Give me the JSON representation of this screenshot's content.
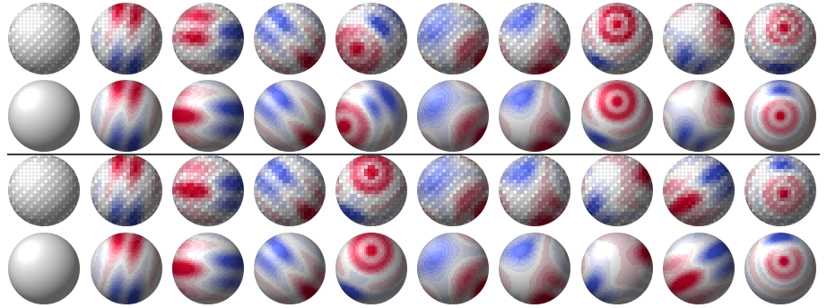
{
  "panels": [
    {
      "rows": [
        {
          "style": "voxel",
          "spheres": [
            {
              "pattern": "plain"
            },
            {
              "pattern": "bands",
              "angle": 15,
              "freq": 3.2,
              "phase": 0.2,
              "hot": [
                0.5,
                0.12,
                0.35
              ],
              "cold": [
                0.5,
                0.9,
                0.35
              ]
            },
            {
              "pattern": "bands",
              "angle": 95,
              "freq": 2.8,
              "phase": 1.0,
              "hot": [
                0.35,
                0.35,
                0.4
              ],
              "cold": [
                0.85,
                0.5,
                0.4
              ]
            },
            {
              "pattern": "bands",
              "angle": 135,
              "freq": 3.0,
              "phase": 0.5,
              "hot": [
                0.85,
                0.85,
                0.35
              ],
              "cold": [
                0.3,
                0.3,
                0.35
              ]
            },
            {
              "pattern": "rings",
              "freq": 3.0,
              "hot": [
                0.3,
                0.65,
                0.45
              ],
              "cold": [
                0.65,
                0.3,
                0.35
              ]
            },
            {
              "pattern": "saddle",
              "angle": 35,
              "freq": 3.0,
              "hot": [
                0.85,
                0.75,
                0.35
              ],
              "cold": [
                0.2,
                0.3,
                0.35
              ]
            },
            {
              "pattern": "saddle",
              "angle": -20,
              "freq": 3.0,
              "hot": [
                0.65,
                0.85,
                0.35
              ],
              "cold": [
                0.3,
                0.2,
                0.3
              ]
            },
            {
              "pattern": "rings",
              "freq": 4.0,
              "hot": [
                0.5,
                0.3,
                0.45
              ],
              "cold": [
                0.2,
                0.9,
                0.3
              ]
            },
            {
              "pattern": "saddle",
              "angle": 60,
              "freq": 3.0,
              "hot": [
                0.8,
                0.3,
                0.3
              ],
              "cold": [
                0.4,
                0.8,
                0.3
              ]
            },
            {
              "pattern": "rings",
              "freq": 4.0,
              "hot": [
                0.55,
                0.35,
                0.3
              ],
              "cold": [
                0.5,
                0.95,
                0.3
              ]
            }
          ]
        },
        {
          "style": "smooth",
          "spheres": [
            {
              "pattern": "plain"
            },
            {
              "pattern": "bands",
              "angle": 15,
              "freq": 3.2,
              "phase": 0.2,
              "hot": [
                0.5,
                0.12,
                0.35
              ],
              "cold": [
                0.5,
                0.9,
                0.35
              ]
            },
            {
              "pattern": "bands",
              "angle": 95,
              "freq": 2.8,
              "phase": 1.0,
              "hot": [
                0.12,
                0.5,
                0.4
              ],
              "cold": [
                0.85,
                0.5,
                0.4
              ]
            },
            {
              "pattern": "bands",
              "angle": 135,
              "freq": 3.0,
              "phase": 0.5,
              "hot": [
                0.85,
                0.85,
                0.35
              ],
              "cold": [
                0.3,
                0.3,
                0.35
              ]
            },
            {
              "pattern": "rings",
              "freq": 3.0,
              "hot": [
                0.12,
                0.65,
                0.45
              ],
              "cold": [
                0.65,
                0.3,
                0.35
              ]
            },
            {
              "pattern": "saddle",
              "angle": 35,
              "freq": 3.0,
              "hot": [
                0.85,
                0.75,
                0.35
              ],
              "cold": [
                0.2,
                0.3,
                0.35
              ]
            },
            {
              "pattern": "saddle",
              "angle": -20,
              "freq": 3.0,
              "hot": [
                0.65,
                0.85,
                0.35
              ],
              "cold": [
                0.3,
                0.2,
                0.3
              ]
            },
            {
              "pattern": "rings",
              "freq": 4.0,
              "hot": [
                0.5,
                0.3,
                0.45
              ],
              "cold": [
                0.2,
                0.9,
                0.3
              ]
            },
            {
              "pattern": "saddle",
              "angle": 60,
              "freq": 3.0,
              "hot": [
                0.8,
                0.3,
                0.3
              ],
              "cold": [
                0.4,
                0.8,
                0.3
              ]
            },
            {
              "pattern": "rings",
              "freq": 4.0,
              "hot": [
                0.5,
                0.5,
                0.3
              ],
              "cold": [
                0.5,
                0.05,
                0.3
              ]
            }
          ]
        }
      ]
    },
    {
      "rows": [
        {
          "style": "voxel",
          "spheres": [
            {
              "pattern": "plain"
            },
            {
              "pattern": "bands",
              "angle": 15,
              "freq": 3.2,
              "phase": 0.2,
              "hot": [
                0.5,
                0.12,
                0.35
              ],
              "cold": [
                0.5,
                0.9,
                0.35
              ]
            },
            {
              "pattern": "bands",
              "angle": 95,
              "freq": 2.8,
              "phase": 1.0,
              "hot": [
                0.3,
                0.45,
                0.4
              ],
              "cold": [
                0.85,
                0.5,
                0.4
              ]
            },
            {
              "pattern": "bands",
              "angle": 135,
              "freq": 3.0,
              "phase": 0.5,
              "hot": [
                0.85,
                0.85,
                0.35
              ],
              "cold": [
                0.3,
                0.3,
                0.35
              ]
            },
            {
              "pattern": "rings",
              "freq": 3.5,
              "hot": [
                0.5,
                0.25,
                0.45
              ],
              "cold": [
                0.2,
                0.85,
                0.3
              ]
            },
            {
              "pattern": "saddle",
              "angle": 35,
              "freq": 3.0,
              "hot": [
                0.85,
                0.75,
                0.35
              ],
              "cold": [
                0.2,
                0.3,
                0.35
              ]
            },
            {
              "pattern": "saddle",
              "angle": -20,
              "freq": 3.0,
              "hot": [
                0.65,
                0.85,
                0.35
              ],
              "cold": [
                0.3,
                0.2,
                0.3
              ]
            },
            {
              "pattern": "saddle",
              "angle": 80,
              "freq": 3.0,
              "hot": [
                0.8,
                0.3,
                0.3
              ],
              "cold": [
                0.2,
                0.8,
                0.3
              ]
            },
            {
              "pattern": "bands",
              "angle": 60,
              "freq": 3.0,
              "phase": 0.3,
              "hot": [
                0.3,
                0.7,
                0.4
              ],
              "cold": [
                0.8,
                0.3,
                0.4
              ]
            },
            {
              "pattern": "rings",
              "freq": 3.5,
              "hot": [
                0.55,
                0.55,
                0.3
              ],
              "cold": [
                0.5,
                0.05,
                0.3
              ]
            }
          ]
        },
        {
          "style": "smooth",
          "spheres": [
            {
              "pattern": "plain"
            },
            {
              "pattern": "bands",
              "angle": 15,
              "freq": 3.2,
              "phase": 0.2,
              "hot": [
                0.5,
                0.12,
                0.35
              ],
              "cold": [
                0.5,
                0.9,
                0.35
              ]
            },
            {
              "pattern": "bands",
              "angle": 95,
              "freq": 2.8,
              "phase": 1.0,
              "hot": [
                0.12,
                0.5,
                0.4
              ],
              "cold": [
                0.85,
                0.5,
                0.4
              ]
            },
            {
              "pattern": "bands",
              "angle": 135,
              "freq": 3.0,
              "phase": 0.5,
              "hot": [
                0.85,
                0.85,
                0.35
              ],
              "cold": [
                0.3,
                0.3,
                0.35
              ]
            },
            {
              "pattern": "rings",
              "freq": 3.5,
              "hot": [
                0.5,
                0.25,
                0.45
              ],
              "cold": [
                0.2,
                0.85,
                0.3
              ]
            },
            {
              "pattern": "saddle",
              "angle": 35,
              "freq": 3.0,
              "hot": [
                0.85,
                0.75,
                0.35
              ],
              "cold": [
                0.2,
                0.3,
                0.35
              ]
            },
            {
              "pattern": "saddle",
              "angle": -20,
              "freq": 3.0,
              "hot": [
                0.65,
                0.85,
                0.35
              ],
              "cold": [
                0.3,
                0.2,
                0.3
              ]
            },
            {
              "pattern": "saddle",
              "angle": 80,
              "freq": 3.0,
              "hot": [
                0.8,
                0.3,
                0.3
              ],
              "cold": [
                0.2,
                0.8,
                0.3
              ]
            },
            {
              "pattern": "bands",
              "angle": 60,
              "freq": 3.0,
              "phase": 0.3,
              "hot": [
                0.3,
                0.7,
                0.4
              ],
              "cold": [
                0.8,
                0.3,
                0.4
              ]
            },
            {
              "pattern": "rings",
              "freq": 4.0,
              "hot": [
                0.55,
                0.4,
                0.3
              ],
              "cold": [
                0.5,
                0.05,
                0.3
              ]
            }
          ]
        }
      ]
    }
  ],
  "colors": {
    "cold": "#3b4cc0",
    "neutral": "#dddddd",
    "hot": "#b40426",
    "plain": "#d9d9d9",
    "divider": "#3a3a3a",
    "background": "#ffffff"
  }
}
